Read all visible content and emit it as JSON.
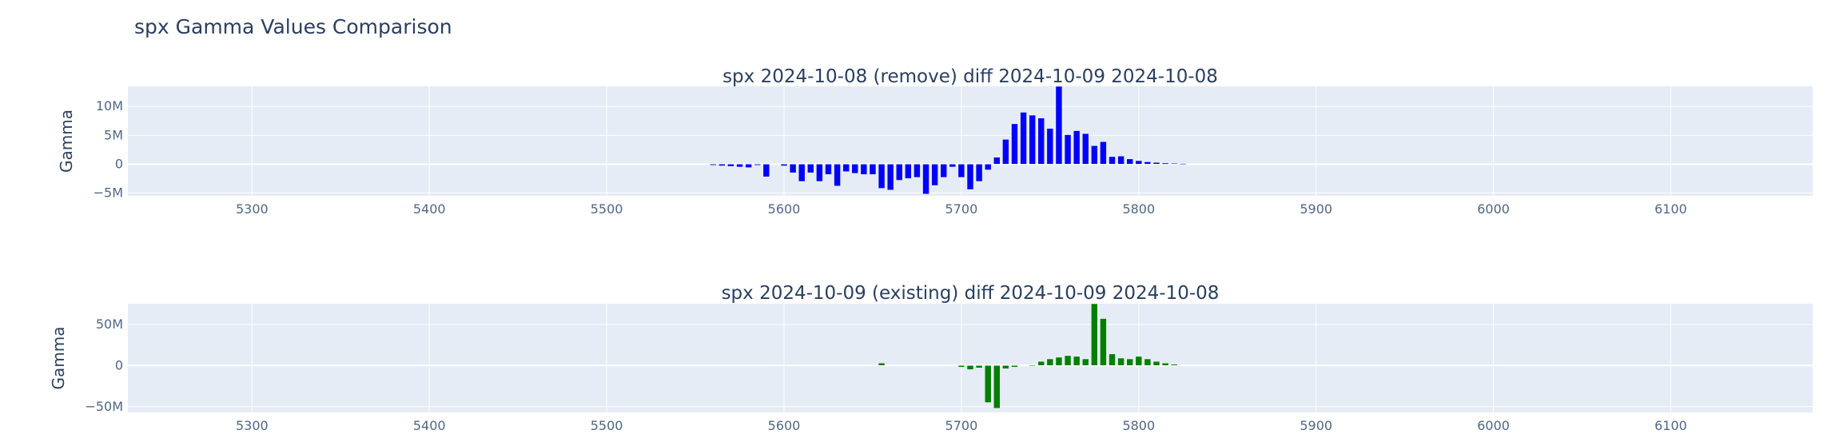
{
  "title": "spx Gamma Values Comparison",
  "chart_data": [
    {
      "type": "bar",
      "title": "spx 2024-10-08 (remove) diff 2024-10-09 2024-10-08",
      "ylabel": "Gamma",
      "xlabel": "",
      "xlim": [
        5230,
        6180
      ],
      "ylim": [
        -5500000,
        13500000
      ],
      "x_ticks": [
        5300,
        5400,
        5500,
        5600,
        5700,
        5800,
        5900,
        6000,
        6100
      ],
      "x_tick_labels": [
        "5300",
        "5400",
        "5500",
        "5600",
        "5700",
        "5800",
        "5900",
        "6000",
        "6100"
      ],
      "y_ticks": [
        -5000000,
        0,
        5000000,
        10000000
      ],
      "y_tick_labels": [
        "−5M",
        "0",
        "5M",
        "10M"
      ],
      "grid": true,
      "series": [
        {
          "color": "#0000ff",
          "x": [
            5560,
            5565,
            5570,
            5575,
            5580,
            5585,
            5590,
            5600,
            5605,
            5610,
            5615,
            5620,
            5625,
            5630,
            5635,
            5640,
            5645,
            5650,
            5655,
            5660,
            5665,
            5670,
            5675,
            5680,
            5685,
            5690,
            5695,
            5700,
            5705,
            5710,
            5715,
            5720,
            5725,
            5730,
            5735,
            5740,
            5745,
            5750,
            5755,
            5760,
            5765,
            5770,
            5775,
            5780,
            5785,
            5790,
            5795,
            5800,
            5805,
            5810,
            5815,
            5820,
            5825
          ],
          "values": [
            -200000,
            -300000,
            -400000,
            -500000,
            -600000,
            -200000,
            -2200000,
            -300000,
            -1500000,
            -3000000,
            -1500000,
            -3000000,
            -1800000,
            -3800000,
            -1300000,
            -1600000,
            -1800000,
            -1800000,
            -4200000,
            -4500000,
            -2800000,
            -2500000,
            -2300000,
            -5200000,
            -3700000,
            -2300000,
            -500000,
            -2300000,
            -4400000,
            -3000000,
            -1000000,
            1200000,
            4300000,
            7000000,
            9000000,
            8500000,
            8000000,
            6200000,
            13500000,
            5100000,
            5800000,
            5300000,
            3200000,
            3900000,
            1300000,
            1400000,
            900000,
            600000,
            400000,
            300000,
            200000,
            150000,
            100000
          ]
        }
      ]
    },
    {
      "type": "bar",
      "title": "spx 2024-10-09 (existing) diff 2024-10-09 2024-10-08",
      "ylabel": "Gamma",
      "xlabel": "",
      "xlim": [
        5230,
        6180
      ],
      "ylim": [
        -57000000,
        75000000
      ],
      "x_ticks": [
        5300,
        5400,
        5500,
        5600,
        5700,
        5800,
        5900,
        6000,
        6100
      ],
      "x_tick_labels": [
        "5300",
        "5400",
        "5500",
        "5600",
        "5700",
        "5800",
        "5900",
        "6000",
        "6100"
      ],
      "y_ticks": [
        -50000000,
        0,
        50000000
      ],
      "y_tick_labels": [
        "−50M",
        "0",
        "50M"
      ],
      "grid": true,
      "series": [
        {
          "color": "#008000",
          "x": [
            5655,
            5700,
            5705,
            5710,
            5715,
            5720,
            5725,
            5730,
            5740,
            5745,
            5750,
            5755,
            5760,
            5765,
            5770,
            5775,
            5780,
            5785,
            5790,
            5795,
            5800,
            5805,
            5810,
            5815,
            5820
          ],
          "values": [
            3000000,
            -2000000,
            -5000000,
            -3000000,
            -45000000,
            -52000000,
            -4000000,
            -2000000,
            -1000000,
            5000000,
            8000000,
            10000000,
            12000000,
            11000000,
            8000000,
            75000000,
            57000000,
            14000000,
            9000000,
            8000000,
            11000000,
            8000000,
            5000000,
            3000000,
            1500000
          ]
        }
      ]
    }
  ]
}
